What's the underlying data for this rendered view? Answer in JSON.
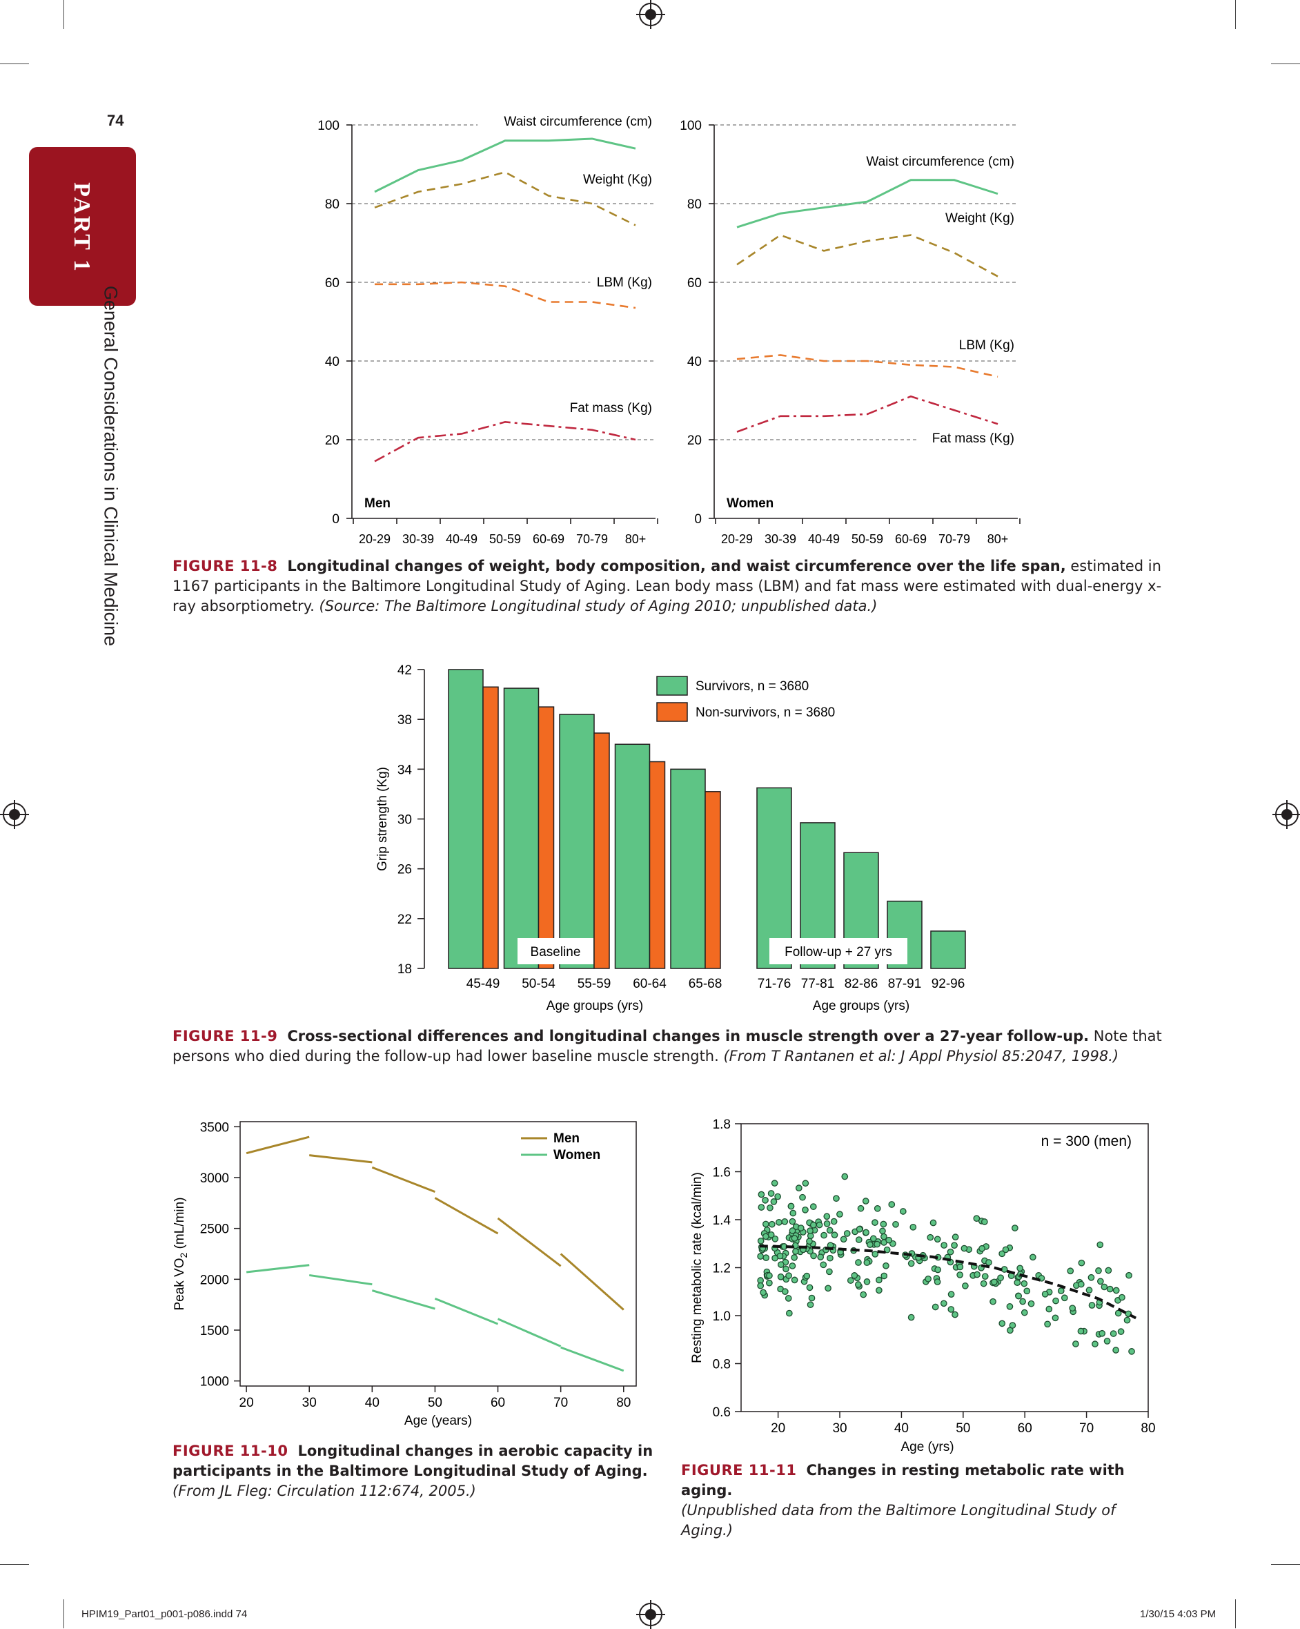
{
  "page": {
    "number": "74",
    "part_tab": "PART 1",
    "side_title": "General Considerations in Clinical Medicine",
    "footer_left": "HPIM19_Part01_p001-p086.indd   74",
    "footer_right": "1/30/15   4:03 PM"
  },
  "colors": {
    "green": "#5ec485",
    "orange": "#f26a21",
    "gold": "#a8862a",
    "dash_gold": "#a8862a",
    "lbm_orange": "#e87a2e",
    "fat_red": "#c0283f",
    "accent_red": "#9b1420"
  },
  "captions": {
    "fig8": {
      "label": "FIGURE 11-8",
      "bold": "Longitudinal changes of weight, body composition, and waist circumference over the life span,",
      "text": " estimated in 1167 participants in the Baltimore Longitudinal Study of Aging. Lean body mass (LBM) and fat mass were estimated with dual-energy x-ray absorptiometry. ",
      "italic": "(Source: The Baltimore Longitudinal study of Aging 2010; unpublished data.)"
    },
    "fig9": {
      "label": "FIGURE 11-9",
      "bold": "Cross-sectional differences and longitudinal changes in muscle strength over a 27-year follow-up.",
      "text": " Note that persons who died during the follow-up had lower baseline muscle strength. ",
      "italic": "(From T Rantanen et al: J Appl Physiol 85:2047, 1998.)"
    },
    "fig10": {
      "label": "FIGURE 11-10",
      "bold": "Longitudinal changes in aerobic capacity in participants in the Baltimore Longitudinal Study of Aging.",
      "italic": " (From JL Fleg: Circulation 112:674, 2005.)"
    },
    "fig11": {
      "label": "FIGURE 11-11",
      "bold": "Changes in resting metabolic rate with aging.",
      "italic": "(Unpublished data from the Baltimore Longitudinal Study of Aging.)"
    }
  },
  "chart_data": [
    {
      "id": "fig8_men",
      "type": "line",
      "panel_label": "Men",
      "categories": [
        "20-29",
        "30-39",
        "40-49",
        "50-59",
        "60-69",
        "70-79",
        "80+"
      ],
      "ylim": [
        0,
        100
      ],
      "yticks": [
        "0",
        "20",
        "40",
        "60",
        "80",
        "100"
      ],
      "grid": "dashed at 20, 40, 60, 80, 100",
      "series": [
        {
          "name": "Waist circumference (cm)",
          "style": "solid-green",
          "values": [
            83,
            88.5,
            91,
            96,
            96,
            96.5,
            94
          ]
        },
        {
          "name": "Weight (Kg)",
          "style": "dashed-gold",
          "values": [
            79,
            83,
            85,
            88,
            82,
            80,
            74.5
          ]
        },
        {
          "name": "LBM (Kg)",
          "style": "dashed-orange",
          "values": [
            59.5,
            59.5,
            60,
            59,
            55,
            55,
            53.5
          ]
        },
        {
          "name": "Fat mass (Kg)",
          "style": "dashdot-red",
          "values": [
            14.5,
            20.5,
            21.5,
            24.5,
            23.5,
            22.5,
            20
          ]
        }
      ]
    },
    {
      "id": "fig8_women",
      "type": "line",
      "panel_label": "Women",
      "categories": [
        "20-29",
        "30-39",
        "40-49",
        "50-59",
        "60-69",
        "70-79",
        "80+"
      ],
      "ylim": [
        0,
        100
      ],
      "yticks": [
        "0",
        "20",
        "40",
        "60",
        "80",
        "100"
      ],
      "grid": "dashed at 20, 40, 60, 80, 100",
      "series": [
        {
          "name": "Waist circumference (cm)",
          "style": "solid-green",
          "values": [
            74,
            77.5,
            79,
            80.5,
            86,
            86,
            82.5
          ]
        },
        {
          "name": "Weight (Kg)",
          "style": "dashed-gold",
          "values": [
            64.5,
            72,
            68,
            70.5,
            72,
            67.5,
            61.5
          ]
        },
        {
          "name": "LBM (Kg)",
          "style": "dashed-orange",
          "values": [
            40.5,
            41.5,
            40,
            40,
            39,
            38.5,
            36
          ]
        },
        {
          "name": "Fat mass (Kg)",
          "style": "dashdot-red",
          "values": [
            22,
            26,
            26,
            26.5,
            31,
            27.5,
            24
          ]
        }
      ]
    },
    {
      "id": "fig9",
      "type": "bar",
      "ylabel": "Grip strength (Kg)",
      "ylim": [
        18,
        42
      ],
      "yticks": [
        "18",
        "22",
        "26",
        "30",
        "34",
        "38",
        "42"
      ],
      "groups": [
        {
          "label": "Baseline",
          "xlabel": "Age groups (yrs)",
          "categories": [
            "45-49",
            "50-54",
            "55-59",
            "60-64",
            "65-68"
          ],
          "survivors": [
            42,
            40.5,
            38.4,
            36,
            34
          ],
          "nonsurvivors": [
            40.6,
            39,
            36.9,
            34.6,
            32.2
          ]
        },
        {
          "label": "Follow-up + 27 yrs",
          "xlabel": "Age groups (yrs)",
          "categories": [
            "71-76",
            "77-81",
            "82-86",
            "87-91",
            "92-96"
          ],
          "survivors": [
            32.5,
            29.7,
            27.3,
            23.4,
            21
          ]
        }
      ],
      "legend": [
        "Survivors, n = 3680",
        "Non-survivors, n = 3680"
      ],
      "legend_position": "top-right"
    },
    {
      "id": "fig10",
      "type": "line",
      "xlabel": "Age (years)",
      "ylabel_main": "Peak VO",
      "ylabel_sub": "2",
      "ylabel_tail": " (mL/min)",
      "xlim": [
        19,
        82
      ],
      "ylim": [
        950,
        3550
      ],
      "xticks": [
        "20",
        "30",
        "40",
        "50",
        "60",
        "70",
        "80"
      ],
      "yticks": [
        "1000",
        "1500",
        "2000",
        "2500",
        "3000",
        "3500"
      ],
      "legend": [
        "Men",
        "Women"
      ],
      "legend_position": "top-right",
      "series": [
        {
          "name": "Men",
          "segments": [
            [
              [
                20,
                3240
              ],
              [
                30,
                3400
              ]
            ],
            [
              [
                30,
                3220
              ],
              [
                40,
                3150
              ]
            ],
            [
              [
                40,
                3100
              ],
              [
                50,
                2860
              ]
            ],
            [
              [
                50,
                2800
              ],
              [
                60,
                2450
              ]
            ],
            [
              [
                60,
                2600
              ],
              [
                70,
                2130
              ]
            ],
            [
              [
                70,
                2250
              ],
              [
                80,
                1700
              ]
            ]
          ]
        },
        {
          "name": "Women",
          "segments": [
            [
              [
                20,
                2070
              ],
              [
                30,
                2140
              ]
            ],
            [
              [
                30,
                2040
              ],
              [
                40,
                1950
              ]
            ],
            [
              [
                40,
                1890
              ],
              [
                50,
                1710
              ]
            ],
            [
              [
                50,
                1810
              ],
              [
                60,
                1560
              ]
            ],
            [
              [
                60,
                1610
              ],
              [
                70,
                1340
              ]
            ],
            [
              [
                70,
                1330
              ],
              [
                80,
                1100
              ]
            ]
          ]
        }
      ]
    },
    {
      "id": "fig11",
      "type": "scatter",
      "xlabel": "Age (yrs)",
      "ylabel": "Resting metabolic rate (kcal/min)",
      "annotation": "n = 300 (men)",
      "xlim": [
        14,
        80
      ],
      "ylim": [
        0.6,
        1.8
      ],
      "xticks": [
        "20",
        "30",
        "40",
        "50",
        "60",
        "70",
        "80"
      ],
      "yticks": [
        "0.6",
        "0.8",
        "1.0",
        "1.2",
        "1.4",
        "1.6",
        "1.8"
      ],
      "trend": [
        [
          17,
          1.29
        ],
        [
          25,
          1.285
        ],
        [
          35,
          1.27
        ],
        [
          45,
          1.245
        ],
        [
          55,
          1.2
        ],
        [
          65,
          1.13
        ],
        [
          72,
          1.07
        ],
        [
          78,
          0.99
        ]
      ],
      "n_points": 300
    }
  ]
}
